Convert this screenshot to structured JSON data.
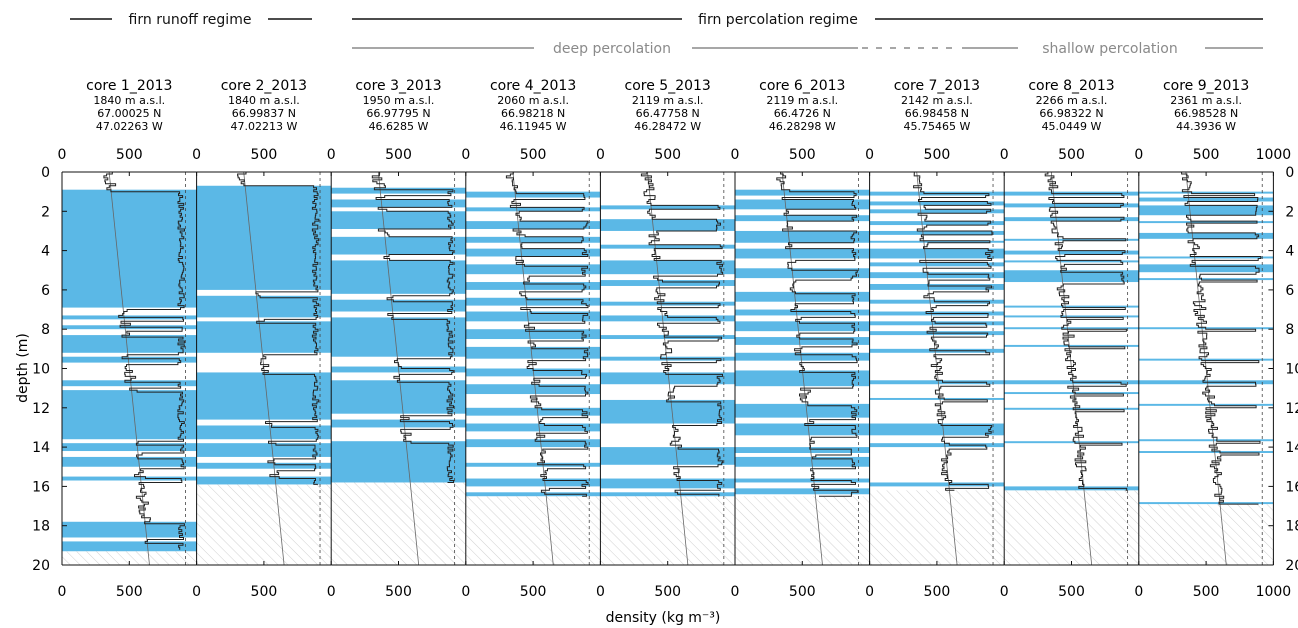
{
  "regimes": {
    "runoff": "firn runoff regime",
    "percolation": "firn percolation regime",
    "deep": "deep percolation",
    "shallow": "shallow percolation"
  },
  "colors": {
    "ice": "#5bb8e6",
    "profile": "#222222",
    "trend": "#666666",
    "hatch": "#bdbdbd",
    "regime_line": "#111111",
    "sub_line": "#8a8a8a"
  },
  "chart_data": {
    "type": "line",
    "title": "",
    "xlabel": "density (kg m⁻³)",
    "ylabel": "depth (m)",
    "xlim": [
      0,
      1000
    ],
    "ylim": [
      20,
      0
    ],
    "xticks": [
      0,
      500,
      1000
    ],
    "xtick_labels": [
      "0",
      "500"
    ],
    "last_xtick_label": "1000",
    "yticks": [
      0,
      2,
      4,
      6,
      8,
      10,
      12,
      14,
      16,
      18,
      20
    ],
    "cores": [
      {
        "name": "core 1_2013",
        "elevation": "1840 m a.s.l.",
        "lat": "67.00025 N",
        "lon": "47.02263 W",
        "max_depth": 19.3,
        "ice_layers": [
          [
            0.9,
            6.9
          ],
          [
            7.3,
            7.5
          ],
          [
            7.8,
            8.0
          ],
          [
            8.3,
            9.2
          ],
          [
            9.4,
            9.7
          ],
          [
            10.6,
            10.9
          ],
          [
            11.1,
            13.6
          ],
          [
            13.8,
            14.2
          ],
          [
            14.5,
            15.0
          ],
          [
            15.5,
            15.7
          ],
          [
            17.8,
            18.6
          ],
          [
            18.8,
            19.3
          ]
        ]
      },
      {
        "name": "core 2_2013",
        "elevation": "1840 m a.s.l.",
        "lat": "66.99837 N",
        "lon": "47.02213 W",
        "max_depth": 15.9,
        "ice_layers": [
          [
            0.7,
            6.0
          ],
          [
            6.3,
            7.4
          ],
          [
            7.6,
            9.2
          ],
          [
            10.2,
            12.6
          ],
          [
            12.9,
            13.6
          ],
          [
            13.8,
            14.5
          ],
          [
            14.8,
            15.1
          ],
          [
            15.5,
            15.9
          ]
        ]
      },
      {
        "name": "core 3_2013",
        "elevation": "1950 m a.s.l.",
        "lat": "66.97795 N",
        "lon": "46.6285 W",
        "max_depth": 15.8,
        "ice_layers": [
          [
            0.8,
            1.1
          ],
          [
            1.4,
            1.8
          ],
          [
            2.0,
            2.9
          ],
          [
            3.3,
            4.2
          ],
          [
            4.5,
            6.2
          ],
          [
            6.5,
            7.1
          ],
          [
            7.4,
            9.4
          ],
          [
            9.9,
            10.2
          ],
          [
            10.6,
            12.3
          ],
          [
            12.6,
            13.0
          ],
          [
            13.7,
            15.8
          ]
        ]
      },
      {
        "name": "core 4_2013",
        "elevation": "2060 m a.s.l.",
        "lat": "66.98218 N",
        "lon": "46.11945 W",
        "max_depth": 16.5,
        "ice_layers": [
          [
            1.0,
            1.3
          ],
          [
            1.8,
            2.0
          ],
          [
            2.5,
            2.9
          ],
          [
            3.3,
            3.6
          ],
          [
            3.9,
            4.3
          ],
          [
            4.7,
            5.2
          ],
          [
            5.6,
            6.0
          ],
          [
            6.4,
            6.8
          ],
          [
            7.1,
            7.6
          ],
          [
            8.0,
            8.5
          ],
          [
            8.9,
            9.5
          ],
          [
            10.0,
            10.4
          ],
          [
            10.8,
            11.3
          ],
          [
            12.0,
            12.4
          ],
          [
            12.8,
            13.2
          ],
          [
            13.6,
            14.0
          ],
          [
            14.8,
            15.0
          ],
          [
            15.6,
            16.0
          ],
          [
            16.3,
            16.5
          ]
        ]
      },
      {
        "name": "core 5_2013",
        "elevation": "2119 m a.s.l.",
        "lat": "66.47758 N",
        "lon": "46.28472 W",
        "max_depth": 16.5,
        "ice_layers": [
          [
            1.7,
            1.9
          ],
          [
            2.4,
            3.0
          ],
          [
            3.7,
            3.9
          ],
          [
            4.5,
            5.2
          ],
          [
            5.5,
            5.8
          ],
          [
            6.6,
            6.8
          ],
          [
            7.3,
            7.6
          ],
          [
            8.3,
            8.5
          ],
          [
            9.4,
            9.6
          ],
          [
            10.2,
            10.8
          ],
          [
            11.6,
            12.8
          ],
          [
            14.0,
            14.9
          ],
          [
            15.6,
            16.1
          ],
          [
            16.3,
            16.5
          ]
        ]
      },
      {
        "name": "core 6_2013",
        "elevation": "2119 m a.s.l.",
        "lat": "66.4726 N",
        "lon": "46.28298 W",
        "max_depth": 16.5,
        "ice_layers": [
          [
            0.9,
            1.2
          ],
          [
            1.4,
            1.9
          ],
          [
            2.2,
            2.5
          ],
          [
            3.0,
            3.6
          ],
          [
            3.9,
            4.4
          ],
          [
            4.9,
            5.4
          ],
          [
            6.1,
            6.6
          ],
          [
            7.0,
            7.3
          ],
          [
            7.6,
            8.1
          ],
          [
            8.4,
            8.8
          ],
          [
            9.2,
            9.6
          ],
          [
            10.1,
            10.9
          ],
          [
            11.8,
            12.5
          ],
          [
            12.8,
            13.4
          ],
          [
            14.0,
            14.3
          ],
          [
            14.5,
            15.0
          ],
          [
            15.6,
            15.8
          ],
          [
            16.1,
            16.4
          ]
        ]
      },
      {
        "name": "core 7_2013",
        "elevation": "2142 m a.s.l.",
        "lat": "66.98458 N",
        "lon": "45.75465 W",
        "max_depth": 16.2,
        "ice_layers": [
          [
            1.0,
            1.2
          ],
          [
            1.5,
            1.7
          ],
          [
            1.9,
            2.1
          ],
          [
            2.5,
            2.7
          ],
          [
            3.0,
            3.2
          ],
          [
            3.5,
            3.6
          ],
          [
            3.9,
            4.4
          ],
          [
            4.6,
            4.8
          ],
          [
            5.1,
            5.4
          ],
          [
            5.7,
            6.0
          ],
          [
            6.5,
            6.7
          ],
          [
            7.1,
            7.3
          ],
          [
            7.6,
            7.8
          ],
          [
            8.1,
            8.3
          ],
          [
            9.0,
            9.2
          ],
          [
            10.6,
            10.8
          ],
          [
            11.5,
            11.6
          ],
          [
            12.8,
            13.4
          ],
          [
            13.8,
            14.0
          ],
          [
            15.8,
            16.0
          ]
        ]
      },
      {
        "name": "core 8_2013",
        "elevation": "2266 m a.s.l.",
        "lat": "66.98322 N",
        "lon": "45.0449 W",
        "max_depth": 16.2,
        "ice_layers": [
          [
            1.0,
            1.2
          ],
          [
            1.6,
            1.8
          ],
          [
            2.3,
            2.5
          ],
          [
            3.4,
            3.5
          ],
          [
            4.0,
            4.2
          ],
          [
            4.5,
            4.6
          ],
          [
            5.0,
            5.6
          ],
          [
            6.8,
            6.9
          ],
          [
            7.3,
            7.4
          ],
          [
            7.9,
            8.0
          ],
          [
            8.8,
            8.9
          ],
          [
            10.6,
            10.8
          ],
          [
            11.2,
            11.3
          ],
          [
            12.0,
            12.1
          ],
          [
            13.7,
            13.8
          ],
          [
            16.0,
            16.2
          ]
        ]
      },
      {
        "name": "core 9_2013",
        "elevation": "2361 m a.s.l.",
        "lat": "66.98528 N",
        "lon": "44.3936 W",
        "max_depth": 16.9,
        "ice_layers": [
          [
            1.0,
            1.1
          ],
          [
            1.3,
            1.5
          ],
          [
            1.7,
            2.2
          ],
          [
            2.5,
            2.6
          ],
          [
            3.1,
            3.4
          ],
          [
            4.3,
            4.4
          ],
          [
            4.7,
            5.1
          ],
          [
            5.4,
            5.5
          ],
          [
            7.9,
            8.0
          ],
          [
            9.5,
            9.6
          ],
          [
            10.6,
            10.8
          ],
          [
            11.8,
            11.9
          ],
          [
            13.6,
            13.7
          ],
          [
            14.2,
            14.3
          ],
          [
            16.8,
            16.9
          ]
        ]
      }
    ]
  }
}
